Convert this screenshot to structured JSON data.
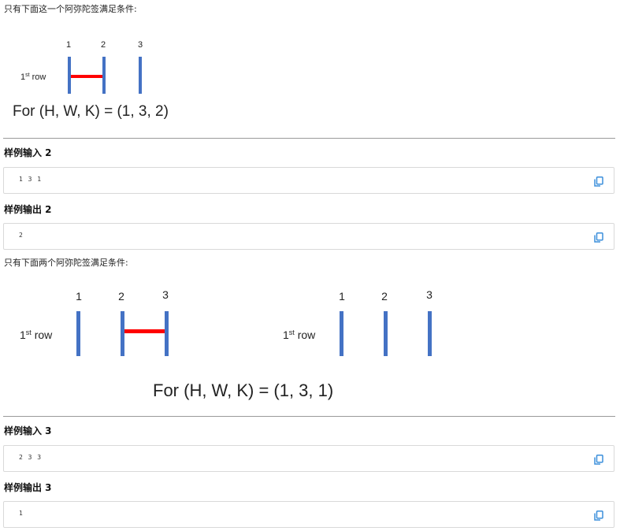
{
  "intro1": "只有下面这一个阿弥陀签满足条件:",
  "figure1": {
    "column_labels": [
      "1",
      "2",
      "3"
    ],
    "row_label": {
      "prefix": "1",
      "sup": "st",
      "suffix": " row"
    },
    "formula": "For (H, W, K) = (1, 3, 2)"
  },
  "sample2": {
    "input_heading": "样例输入 2",
    "input": "1 3 1",
    "output_heading": "样例输出 2",
    "output": "2"
  },
  "intro2": "只有下面两个阿弥陀签满足条件:",
  "figure2": {
    "left": {
      "column_labels": [
        "1",
        "2",
        "3"
      ],
      "row_label": {
        "prefix": "1",
        "sup": "st",
        "suffix": " row"
      }
    },
    "right": {
      "column_labels": [
        "1",
        "2",
        "3"
      ],
      "row_label": {
        "prefix": "1",
        "sup": "st",
        "suffix": " row"
      }
    },
    "formula": "For (H, W, K) = (1, 3, 1)"
  },
  "sample3": {
    "input_heading": "样例输入 3",
    "input": "2 3 3",
    "output_heading": "样例输出 3",
    "output": "1"
  },
  "colors": {
    "vertical_line": "#4472c4",
    "horizontal_line": "#ff0000",
    "copy_icon": "#3b8fdb",
    "divider": "#9a9a9a"
  },
  "icons": {
    "copy": "copy-icon"
  }
}
